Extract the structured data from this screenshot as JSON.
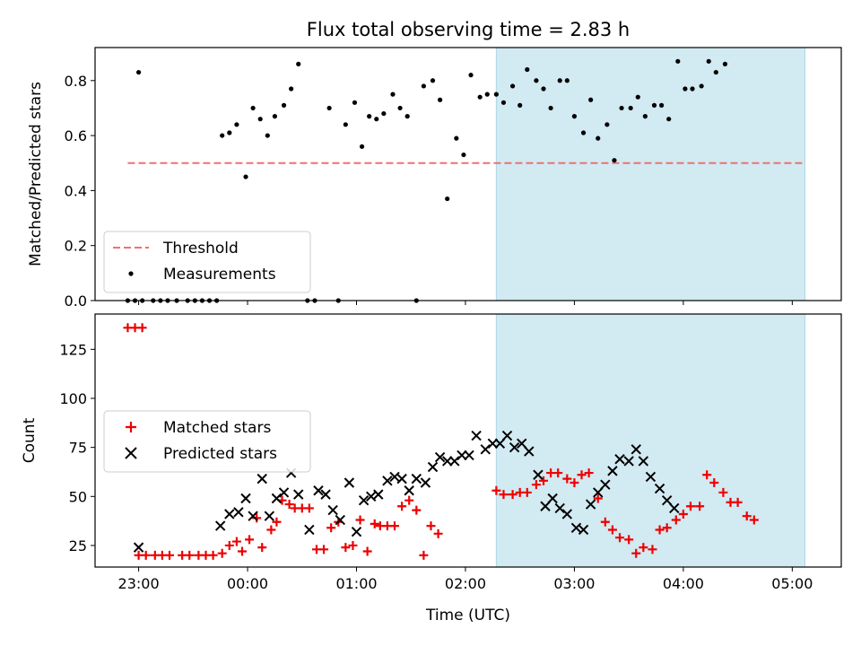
{
  "colors": {
    "threshold": "#f07070",
    "measurement": "#000000",
    "matched": "#ee0000",
    "predicted": "#000000",
    "highlight": "#add8e6"
  },
  "chart_data": [
    {
      "type": "scatter",
      "title": "Flux total observing time = 2.83 h",
      "xlabel": "",
      "ylabel": "Matched/Predicted stars",
      "xlim": [
        "22:36",
        "05:27"
      ],
      "ylim": [
        0,
        0.92
      ],
      "yticks": [
        "0.0",
        "0.2",
        "0.4",
        "0.6",
        "0.8"
      ],
      "highlight_span": [
        "02:17",
        "05:07"
      ],
      "legend": {
        "placement": "lower-left",
        "entries": [
          "Threshold",
          "Measurements"
        ]
      },
      "series": [
        {
          "name": "Threshold",
          "kind": "dashed-line",
          "points": [
            [
              "22:54",
              0.5
            ],
            [
              "05:07",
              0.5
            ]
          ]
        },
        {
          "name": "Measurements",
          "kind": "dots",
          "points": [
            [
              "22:54",
              0
            ],
            [
              "22:58",
              0
            ],
            [
              "23:02",
              0
            ],
            [
              "23:00",
              0.83
            ],
            [
              "23:08",
              0
            ],
            [
              "23:12",
              0
            ],
            [
              "23:16",
              0
            ],
            [
              "23:21",
              0
            ],
            [
              "23:27",
              0
            ],
            [
              "23:31",
              0
            ],
            [
              "23:35",
              0
            ],
            [
              "23:39",
              0
            ],
            [
              "23:43",
              0
            ],
            [
              "23:46",
              0.6
            ],
            [
              "23:50",
              0.61
            ],
            [
              "23:54",
              0.64
            ],
            [
              "23:59",
              0.45
            ],
            [
              "00:03",
              0.7
            ],
            [
              "00:07",
              0.66
            ],
            [
              "00:11",
              0.6
            ],
            [
              "00:15",
              0.67
            ],
            [
              "00:20",
              0.71
            ],
            [
              "00:24",
              0.77
            ],
            [
              "00:28",
              0.86
            ],
            [
              "00:33",
              0
            ],
            [
              "00:37",
              0
            ],
            [
              "00:45",
              0.7
            ],
            [
              "00:50",
              0
            ],
            [
              "00:54",
              0.64
            ],
            [
              "00:59",
              0.72
            ],
            [
              "01:03",
              0.56
            ],
            [
              "01:07",
              0.67
            ],
            [
              "01:11",
              0.66
            ],
            [
              "01:15",
              0.68
            ],
            [
              "01:20",
              0.75
            ],
            [
              "01:24",
              0.7
            ],
            [
              "01:28",
              0.67
            ],
            [
              "01:33",
              0
            ],
            [
              "01:37",
              0.78
            ],
            [
              "01:42",
              0.8
            ],
            [
              "01:46",
              0.73
            ],
            [
              "01:50",
              0.37
            ],
            [
              "01:55",
              0.59
            ],
            [
              "01:59",
              0.53
            ],
            [
              "02:03",
              0.82
            ],
            [
              "02:08",
              0.74
            ],
            [
              "02:12",
              0.75
            ],
            [
              "02:17",
              0.75
            ],
            [
              "02:21",
              0.72
            ],
            [
              "02:26",
              0.78
            ],
            [
              "02:30",
              0.71
            ],
            [
              "02:34",
              0.84
            ],
            [
              "02:39",
              0.8
            ],
            [
              "02:43",
              0.77
            ],
            [
              "02:47",
              0.7
            ],
            [
              "02:52",
              0.8
            ],
            [
              "02:56",
              0.8
            ],
            [
              "03:00",
              0.67
            ],
            [
              "03:05",
              0.61
            ],
            [
              "03:09",
              0.73
            ],
            [
              "03:13",
              0.59
            ],
            [
              "03:18",
              0.64
            ],
            [
              "03:22",
              0.51
            ],
            [
              "03:26",
              0.7
            ],
            [
              "03:31",
              0.7
            ],
            [
              "03:35",
              0.74
            ],
            [
              "03:39",
              0.67
            ],
            [
              "03:44",
              0.71
            ],
            [
              "03:48",
              0.71
            ],
            [
              "03:52",
              0.66
            ],
            [
              "03:57",
              0.87
            ],
            [
              "04:01",
              0.77
            ],
            [
              "04:05",
              0.77
            ],
            [
              "04:10",
              0.78
            ],
            [
              "04:14",
              0.87
            ],
            [
              "04:18",
              0.83
            ],
            [
              "04:23",
              0.86
            ]
          ]
        }
      ]
    },
    {
      "type": "scatter",
      "title": "",
      "xlabel": "Time (UTC)",
      "ylabel": "Count",
      "xlim": [
        "22:36",
        "05:27"
      ],
      "ylim": [
        14,
        143
      ],
      "xticks": [
        "23:00",
        "00:00",
        "01:00",
        "02:00",
        "03:00",
        "04:00",
        "05:00"
      ],
      "yticks": [
        "25",
        "50",
        "75",
        "100",
        "125"
      ],
      "highlight_span": [
        "02:17",
        "05:07"
      ],
      "legend": {
        "placement": "center-left",
        "entries": [
          "Matched stars",
          "Predicted stars"
        ]
      },
      "series": [
        {
          "name": "Matched stars",
          "marker": "plus",
          "points": [
            [
              "22:54",
              136
            ],
            [
              "22:58",
              136
            ],
            [
              "23:02",
              136
            ],
            [
              "23:00",
              20
            ],
            [
              "23:04",
              20
            ],
            [
              "23:09",
              20
            ],
            [
              "23:13",
              20
            ],
            [
              "23:17",
              20
            ],
            [
              "23:24",
              20
            ],
            [
              "23:28",
              20
            ],
            [
              "23:33",
              20
            ],
            [
              "23:37",
              20
            ],
            [
              "23:41",
              20
            ],
            [
              "23:46",
              21
            ],
            [
              "23:50",
              25
            ],
            [
              "23:54",
              27
            ],
            [
              "23:57",
              22
            ],
            [
              "00:01",
              28
            ],
            [
              "00:05",
              39
            ],
            [
              "00:08",
              24
            ],
            [
              "00:13",
              33
            ],
            [
              "00:16",
              37
            ],
            [
              "00:19",
              48
            ],
            [
              "00:23",
              46
            ],
            [
              "00:26",
              44
            ],
            [
              "00:30",
              44
            ],
            [
              "00:34",
              44
            ],
            [
              "00:38",
              23
            ],
            [
              "00:42",
              23
            ],
            [
              "00:46",
              34
            ],
            [
              "00:50",
              37
            ],
            [
              "00:54",
              24
            ],
            [
              "00:58",
              25
            ],
            [
              "01:02",
              38
            ],
            [
              "01:06",
              22
            ],
            [
              "01:10",
              36
            ],
            [
              "01:13",
              35
            ],
            [
              "01:17",
              35
            ],
            [
              "01:21",
              35
            ],
            [
              "01:25",
              45
            ],
            [
              "01:29",
              48
            ],
            [
              "01:33",
              43
            ],
            [
              "01:37",
              20
            ],
            [
              "01:41",
              35
            ],
            [
              "01:45",
              31
            ],
            [
              "02:17",
              53
            ],
            [
              "02:21",
              51
            ],
            [
              "02:26",
              51
            ],
            [
              "02:30",
              52
            ],
            [
              "02:34",
              52
            ],
            [
              "02:39",
              56
            ],
            [
              "02:43",
              58
            ],
            [
              "02:47",
              62
            ],
            [
              "02:51",
              62
            ],
            [
              "02:56",
              59
            ],
            [
              "03:00",
              57
            ],
            [
              "03:04",
              61
            ],
            [
              "03:08",
              62
            ],
            [
              "03:13",
              49
            ],
            [
              "03:17",
              37
            ],
            [
              "03:21",
              33
            ],
            [
              "03:25",
              29
            ],
            [
              "03:30",
              28
            ],
            [
              "03:34",
              21
            ],
            [
              "03:38",
              24
            ],
            [
              "03:43",
              23
            ],
            [
              "03:47",
              33
            ],
            [
              "03:51",
              34
            ],
            [
              "03:56",
              38
            ],
            [
              "04:00",
              41
            ],
            [
              "04:04",
              45
            ],
            [
              "04:09",
              45
            ],
            [
              "04:13",
              61
            ],
            [
              "04:17",
              57
            ],
            [
              "04:22",
              52
            ],
            [
              "04:26",
              47
            ],
            [
              "04:30",
              47
            ],
            [
              "04:35",
              40
            ],
            [
              "04:39",
              38
            ]
          ]
        },
        {
          "name": "Predicted stars",
          "marker": "x",
          "points": [
            [
              "23:00",
              24
            ],
            [
              "23:45",
              35
            ],
            [
              "23:50",
              41
            ],
            [
              "23:55",
              42
            ],
            [
              "23:59",
              49
            ],
            [
              "00:03",
              40
            ],
            [
              "00:08",
              59
            ],
            [
              "00:12",
              40
            ],
            [
              "00:16",
              49
            ],
            [
              "00:20",
              52
            ],
            [
              "00:24",
              62
            ],
            [
              "00:28",
              51
            ],
            [
              "00:34",
              33
            ],
            [
              "00:39",
              53
            ],
            [
              "00:43",
              51
            ],
            [
              "00:47",
              43
            ],
            [
              "00:51",
              38
            ],
            [
              "00:56",
              57
            ],
            [
              "01:00",
              32
            ],
            [
              "01:04",
              48
            ],
            [
              "01:08",
              50
            ],
            [
              "01:12",
              51
            ],
            [
              "01:17",
              58
            ],
            [
              "01:21",
              60
            ],
            [
              "01:25",
              59
            ],
            [
              "01:29",
              53
            ],
            [
              "01:33",
              59
            ],
            [
              "01:38",
              57
            ],
            [
              "01:42",
              65
            ],
            [
              "01:46",
              70
            ],
            [
              "01:50",
              68
            ],
            [
              "01:54",
              68
            ],
            [
              "01:58",
              71
            ],
            [
              "02:02",
              71
            ],
            [
              "02:06",
              81
            ],
            [
              "02:11",
              74
            ],
            [
              "02:15",
              77
            ],
            [
              "02:19",
              77
            ],
            [
              "02:23",
              81
            ],
            [
              "02:27",
              75
            ],
            [
              "02:31",
              77
            ],
            [
              "02:35",
              73
            ],
            [
              "02:40",
              61
            ],
            [
              "02:44",
              45
            ],
            [
              "02:48",
              49
            ],
            [
              "02:52",
              44
            ],
            [
              "02:56",
              41
            ],
            [
              "03:01",
              34
            ],
            [
              "03:05",
              33
            ],
            [
              "03:09",
              46
            ],
            [
              "03:13",
              52
            ],
            [
              "03:17",
              56
            ],
            [
              "03:21",
              63
            ],
            [
              "03:25",
              69
            ],
            [
              "03:30",
              68
            ],
            [
              "03:34",
              74
            ],
            [
              "03:38",
              68
            ],
            [
              "03:42",
              60
            ],
            [
              "03:47",
              54
            ],
            [
              "03:51",
              48
            ],
            [
              "03:55",
              44
            ]
          ]
        }
      ]
    }
  ]
}
